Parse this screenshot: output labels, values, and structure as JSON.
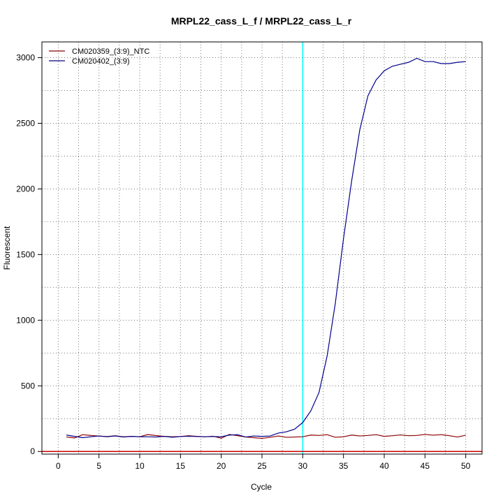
{
  "chart_data": {
    "type": "line",
    "title": "MRPL22_cass_L_f / MRPL22_cass_L_r",
    "xlabel": "Cycle",
    "ylabel": "Fluorescent",
    "xlim": [
      -2,
      52
    ],
    "ylim": [
      -20,
      3120
    ],
    "x_ticks": [
      0,
      5,
      10,
      15,
      20,
      25,
      30,
      35,
      40,
      45,
      50
    ],
    "y_ticks": [
      0,
      500,
      1000,
      1500,
      2000,
      2500,
      3000
    ],
    "grid": true,
    "legend_position": "top-left",
    "threshold_cycle": 30,
    "threshold_color": "#00ffff",
    "baseline_value": 0,
    "baseline_color": "#cc0000",
    "x": [
      1,
      2,
      3,
      4,
      5,
      6,
      7,
      8,
      9,
      10,
      11,
      12,
      13,
      14,
      15,
      16,
      17,
      18,
      19,
      20,
      21,
      22,
      23,
      24,
      25,
      26,
      27,
      28,
      29,
      30,
      31,
      32,
      33,
      34,
      35,
      36,
      37,
      38,
      39,
      40,
      41,
      42,
      43,
      44,
      45,
      46,
      47,
      48,
      49,
      50
    ],
    "series": [
      {
        "name": "CM020359_(3:9)_NTC",
        "color": "#8b0000",
        "values": [
          110,
          103,
          128,
          122,
          117,
          114,
          120,
          112,
          115,
          112,
          129,
          121,
          115,
          112,
          114,
          120,
          115,
          112,
          116,
          101,
          130,
          120,
          110,
          105,
          100,
          108,
          118,
          108,
          110,
          112,
          125,
          122,
          128,
          108,
          112,
          125,
          118,
          122,
          128,
          115,
          120,
          126,
          120,
          122,
          130,
          124,
          128,
          120,
          110,
          124
        ]
      },
      {
        "name": "CM020402_(3:9)",
        "color": "#00008b",
        "values": [
          125,
          115,
          105,
          112,
          118,
          112,
          118,
          110,
          115,
          112,
          112,
          110,
          115,
          108,
          114,
          116,
          114,
          112,
          114,
          112,
          125,
          128,
          110,
          118,
          115,
          118,
          140,
          150,
          170,
          220,
          310,
          450,
          730,
          1130,
          1620,
          2060,
          2450,
          2710,
          2830,
          2900,
          2935,
          2950,
          2965,
          2995,
          2970,
          2970,
          2955,
          2955,
          2965,
          2970
        ]
      }
    ]
  }
}
